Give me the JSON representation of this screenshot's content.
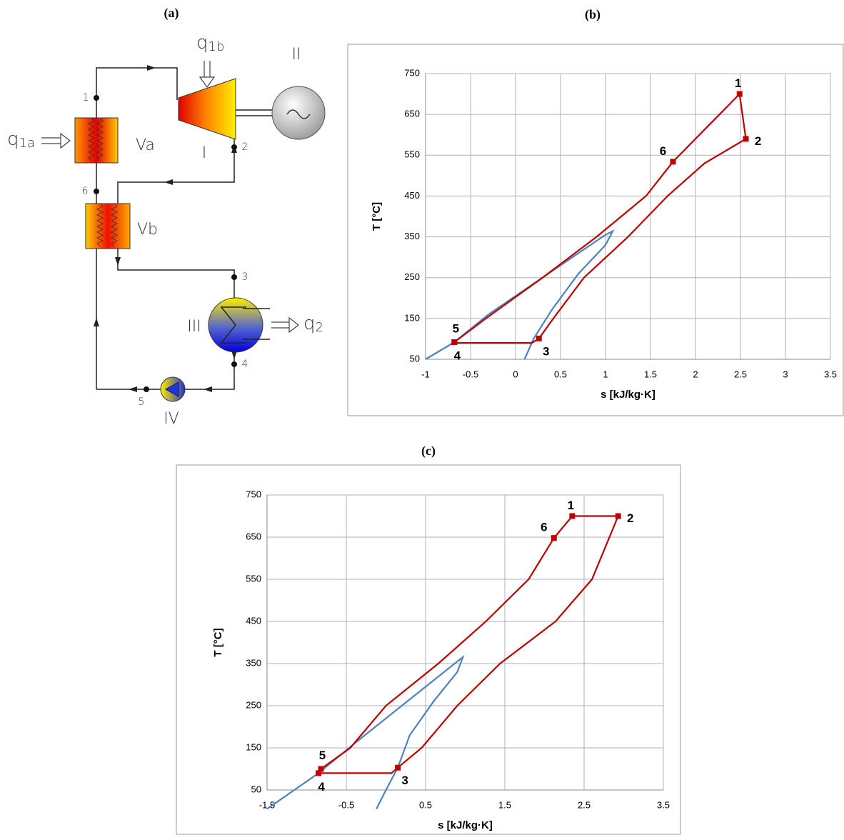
{
  "diagram": {
    "panel": "(a)",
    "states": [
      "1",
      "2",
      "3",
      "4",
      "5",
      "6"
    ],
    "components": [
      "I",
      "II",
      "III",
      "IV",
      "Va",
      "Vb"
    ],
    "heat": [
      {
        "symbol": "q",
        "sub": "1a"
      },
      {
        "symbol": "q",
        "sub": "1b"
      },
      {
        "symbol": "q",
        "sub": "2"
      }
    ]
  },
  "chart_data": [
    {
      "type": "line",
      "panel": "(b)",
      "xlabel": "s [kJ/kg·K]",
      "ylabel": "T [°C]",
      "xlim": [
        -1,
        3.5
      ],
      "xticks": [
        -1,
        -0.5,
        0,
        0.5,
        1,
        1.5,
        2,
        2.5,
        3,
        3.5
      ],
      "ylim": [
        50,
        750
      ],
      "yticks": [
        50,
        150,
        250,
        350,
        450,
        550,
        650,
        750
      ],
      "grid": true,
      "series": [
        {
          "color": "#4f81bd",
          "x": [
            -1,
            -0.68,
            -0.3,
            0.3,
            0.7,
            1.0,
            1.08,
            1.0,
            0.7,
            0.4,
            0.2,
            0.1
          ],
          "values": [
            50,
            92,
            160,
            250,
            310,
            355,
            364,
            330,
            260,
            170,
            100,
            50
          ]
        },
        {
          "color": "#c00000",
          "x": [
            -0.68,
            -0.68,
            0.18,
            0.26,
            0.42,
            0.76,
            1.25,
            1.69,
            2.1,
            2.56,
            2.49,
            1.75,
            1.45,
            0.9,
            0.3,
            -0.33,
            -0.68
          ],
          "values": [
            92,
            90,
            90,
            101,
            150,
            250,
            350,
            450,
            530,
            590,
            700,
            534,
            450,
            350,
            250,
            150,
            92
          ]
        }
      ],
      "points": {
        "color": "#c00000",
        "labels": [
          "1",
          "2",
          "3",
          "4",
          "5",
          "6"
        ],
        "x": [
          2.49,
          2.56,
          0.26,
          -0.68,
          -0.68,
          1.75
        ],
        "values": [
          700,
          590,
          101,
          92,
          92,
          534
        ]
      }
    },
    {
      "type": "line",
      "panel": "(c)",
      "xlabel": "s [kJ/kg·K]",
      "ylabel": "T [°C]",
      "xlim": [
        -1.5,
        3.5
      ],
      "xticks": [
        -1.5,
        -0.5,
        0.5,
        1.5,
        2.5,
        3.5
      ],
      "ylim": [
        50,
        750
      ],
      "yticks": [
        50,
        150,
        250,
        350,
        450,
        550,
        650,
        750
      ],
      "grid": true,
      "series": [
        {
          "color": "#4f81bd",
          "x": [
            -1.5,
            -0.85,
            -0.4,
            0.2,
            0.6,
            0.9,
            0.97,
            0.9,
            0.6,
            0.3,
            0.15,
            0.0,
            -0.12
          ],
          "values": [
            5,
            90,
            160,
            250,
            310,
            355,
            365,
            330,
            260,
            180,
            103,
            50,
            5
          ]
        },
        {
          "color": "#c00000",
          "x": [
            -0.82,
            -0.85,
            0.07,
            0.15,
            0.45,
            0.9,
            1.44,
            2.14,
            2.6,
            2.93,
            2.35,
            2.12,
            1.8,
            1.26,
            0.66,
            0.0,
            -0.45,
            -0.82
          ],
          "values": [
            100,
            90,
            90,
            103,
            150,
            250,
            350,
            450,
            550,
            700,
            700,
            648,
            550,
            450,
            350,
            250,
            150,
            100
          ]
        }
      ],
      "points": {
        "color": "#c00000",
        "labels": [
          "1",
          "2",
          "3",
          "4",
          "5",
          "6"
        ],
        "x": [
          2.35,
          2.93,
          0.15,
          -0.85,
          -0.82,
          2.12
        ],
        "values": [
          700,
          700,
          103,
          90,
          100,
          648
        ]
      }
    }
  ]
}
